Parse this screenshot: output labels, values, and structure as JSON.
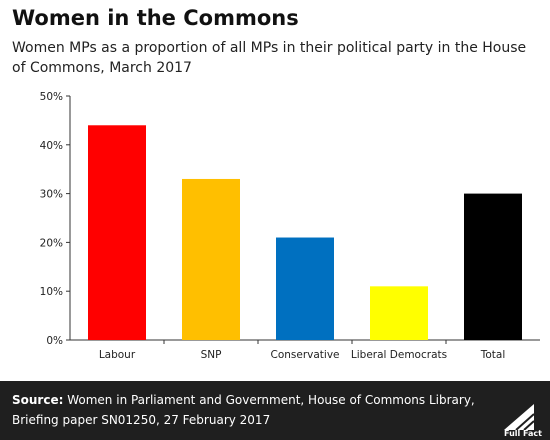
{
  "header": {
    "title": "Women in the Commons",
    "subtitle": "Women MPs as a proportion of all MPs in their political party in the House of Commons, March 2017"
  },
  "footer": {
    "source_label": "Source:",
    "source_text": "Women in Parliament and Government, House of Commons Library, Briefing paper SN01250, 27 February 2017",
    "logo_text": "Full Fact",
    "logo_icon": "full-fact-logo-icon"
  },
  "colors": {
    "labour": "#ff0000",
    "snp": "#ffbf00",
    "conservative": "#0070c0",
    "liberal_democrats": "#ffff00",
    "total": "#000000",
    "footer_bg": "#1f1f1f"
  },
  "chart_data": {
    "type": "bar",
    "title": "Women in the Commons",
    "subtitle": "Women MPs as a proportion of all MPs in their political party in the House of Commons, March 2017",
    "categories": [
      "Labour",
      "SNP",
      "Conservative",
      "Liberal Democrats",
      "Total"
    ],
    "values": [
      44,
      33,
      21,
      11,
      30
    ],
    "bar_colors": [
      "#ff0000",
      "#ffbf00",
      "#0070c0",
      "#ffff00",
      "#000000"
    ],
    "ylim": [
      0,
      50
    ],
    "yticks": [
      0,
      10,
      20,
      30,
      40,
      50
    ],
    "ytick_labels": [
      "0%",
      "10%",
      "20%",
      "30%",
      "40%",
      "50%"
    ],
    "xlabel": "",
    "ylabel": "",
    "grid": false,
    "legend": "none"
  }
}
